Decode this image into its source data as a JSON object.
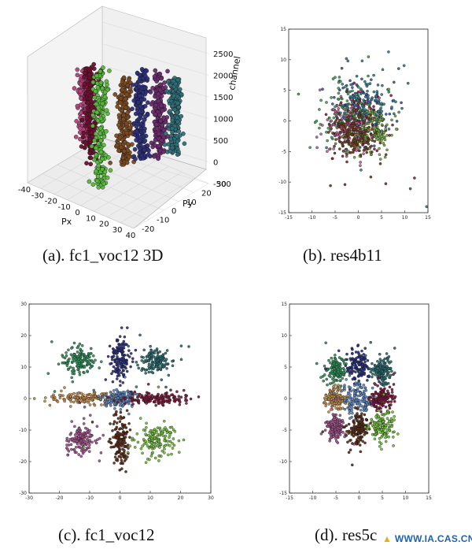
{
  "figure": {
    "captions": {
      "a": "(a). fc1_voc12 3D",
      "b": "(b). res4b11",
      "c": "(c). fc1_voc12",
      "d": "(d). res5c"
    },
    "watermark": "WWW.IA.CAS.CN"
  },
  "chart_data": [
    {
      "id": "a",
      "type": "scatter",
      "projection": "3d",
      "title": "",
      "xlabel": "Px",
      "ylabel": "Py",
      "zlabel": "channel",
      "xlim": [
        -40,
        40
      ],
      "ylim": [
        -20,
        30
      ],
      "zlim": [
        -500,
        2500
      ],
      "xticks": [
        -40,
        -30,
        -20,
        -10,
        0,
        10,
        20,
        30,
        40
      ],
      "yticks": [
        -20,
        -10,
        0,
        10,
        20,
        30
      ],
      "zticks": [
        -500,
        0,
        500,
        1000,
        1500,
        2000,
        2500
      ],
      "series": [
        {
          "name": "pink column",
          "color": "#b0447a",
          "center": {
            "x": -25,
            "y": 5
          },
          "z_range": [
            200,
            1800
          ]
        },
        {
          "name": "maroon column",
          "color": "#6e1030",
          "center": {
            "x": -15,
            "y": 0
          },
          "z_range": [
            -100,
            2100
          ]
        },
        {
          "name": "green column",
          "color": "#57b83c",
          "center": {
            "x": -2,
            "y": -5
          },
          "z_range": [
            -400,
            2300
          ]
        },
        {
          "name": "olive column",
          "color": "#7a4a22",
          "center": {
            "x": 5,
            "y": 5
          },
          "z_range": [
            0,
            2000
          ]
        },
        {
          "name": "navy column",
          "color": "#2d2f7a",
          "center": {
            "x": 12,
            "y": 10
          },
          "z_range": [
            100,
            2200
          ]
        },
        {
          "name": "purple column",
          "color": "#6b2c6e",
          "center": {
            "x": 20,
            "y": 15
          },
          "z_range": [
            200,
            2100
          ]
        },
        {
          "name": "teal column",
          "color": "#2f6f78",
          "center": {
            "x": 28,
            "y": 18
          },
          "z_range": [
            300,
            2000
          ]
        }
      ]
    },
    {
      "id": "b",
      "type": "scatter",
      "title": "",
      "xlim": [
        -15,
        15
      ],
      "ylim": [
        -15,
        15
      ],
      "xticks": [
        -15,
        -10,
        -5,
        0,
        5,
        10,
        15
      ],
      "yticks": [
        -15,
        -10,
        -5,
        0,
        5,
        10,
        15
      ],
      "series": [
        {
          "name": "blue",
          "color": "#3a57a8",
          "center": [
            0,
            2
          ],
          "spread": [
            3.0,
            2.8
          ]
        },
        {
          "name": "green",
          "color": "#3fa14d",
          "center": [
            -2,
            1
          ],
          "spread": [
            2.6,
            2.4
          ]
        },
        {
          "name": "maroon",
          "color": "#8a1f3c",
          "center": [
            1,
            -1
          ],
          "spread": [
            2.8,
            2.6
          ]
        },
        {
          "name": "teal",
          "color": "#2f7d86",
          "center": [
            2,
            2
          ],
          "spread": [
            2.8,
            2.6
          ]
        },
        {
          "name": "pink",
          "color": "#c25a8e",
          "center": [
            -2,
            -1
          ],
          "spread": [
            2.6,
            2.4
          ]
        },
        {
          "name": "olive",
          "color": "#6fa83a",
          "center": [
            3,
            -2
          ],
          "spread": [
            2.4,
            2.2
          ]
        },
        {
          "name": "brown",
          "color": "#6b3a1c",
          "center": [
            -1,
            -2
          ],
          "spread": [
            2.4,
            2.2
          ]
        }
      ]
    },
    {
      "id": "c",
      "type": "scatter",
      "title": "",
      "xlim": [
        -30,
        30
      ],
      "ylim": [
        -30,
        30
      ],
      "xticks": [
        -30,
        -20,
        -10,
        0,
        10,
        20,
        30
      ],
      "yticks": [
        -30,
        -20,
        -10,
        0,
        10,
        20,
        30
      ],
      "series": [
        {
          "name": "green top-left",
          "color": "#2f8f5a",
          "center": [
            -13,
            12
          ],
          "spread": [
            2.6,
            2.0
          ]
        },
        {
          "name": "navy top-center",
          "color": "#2b2f80",
          "center": [
            0,
            13
          ],
          "spread": [
            1.6,
            3.8
          ]
        },
        {
          "name": "teal top-right",
          "color": "#2a6b70",
          "center": [
            12,
            12
          ],
          "spread": [
            2.2,
            1.8
          ]
        },
        {
          "name": "tan mid-left",
          "color": "#c08a4a",
          "center": [
            -12,
            0
          ],
          "spread": [
            5.5,
            1.0
          ]
        },
        {
          "name": "blue mid-center",
          "color": "#5a86c0",
          "center": [
            0,
            0
          ],
          "spread": [
            2.6,
            1.2
          ]
        },
        {
          "name": "maroon mid-right",
          "color": "#7a1838",
          "center": [
            12,
            0
          ],
          "spread": [
            5.0,
            1.0
          ]
        },
        {
          "name": "purple bottom-left",
          "color": "#a0508a",
          "center": [
            -13,
            -13
          ],
          "spread": [
            2.6,
            2.2
          ]
        },
        {
          "name": "brown bottom-center",
          "color": "#5a2a14",
          "center": [
            0,
            -13
          ],
          "spread": [
            1.5,
            4.2
          ]
        },
        {
          "name": "lime bottom-right",
          "color": "#6fbf3a",
          "center": [
            12,
            -13
          ],
          "spread": [
            2.8,
            2.4
          ]
        }
      ]
    },
    {
      "id": "d",
      "type": "scatter",
      "title": "",
      "xlim": [
        -15,
        15
      ],
      "ylim": [
        -15,
        15
      ],
      "xticks": [
        -15,
        -10,
        -5,
        0,
        5,
        10,
        15
      ],
      "yticks": [
        -15,
        -10,
        -5,
        0,
        5,
        10,
        15
      ],
      "series": [
        {
          "name": "green top-left",
          "color": "#2f8f5a",
          "center": [
            -5,
            4.5
          ],
          "spread": [
            1.2,
            1.0
          ]
        },
        {
          "name": "navy top-center",
          "color": "#2b2f80",
          "center": [
            0,
            5
          ],
          "spread": [
            1.1,
            1.2
          ]
        },
        {
          "name": "teal top-right",
          "color": "#2a6b70",
          "center": [
            5,
            4.5
          ],
          "spread": [
            1.1,
            1.0
          ]
        },
        {
          "name": "tan mid-left",
          "color": "#c08a4a",
          "center": [
            -5,
            0
          ],
          "spread": [
            1.2,
            0.8
          ]
        },
        {
          "name": "blue mid-center",
          "color": "#5a86c0",
          "center": [
            0,
            0
          ],
          "spread": [
            1.6,
            1.2
          ]
        },
        {
          "name": "maroon mid-right",
          "color": "#7a1838",
          "center": [
            5,
            0
          ],
          "spread": [
            1.1,
            0.8
          ]
        },
        {
          "name": "purple bottom-left",
          "color": "#a0508a",
          "center": [
            -5,
            -4.5
          ],
          "spread": [
            1.0,
            1.0
          ]
        },
        {
          "name": "brown bottom-center",
          "color": "#5a2a14",
          "center": [
            0,
            -5
          ],
          "spread": [
            1.1,
            1.4
          ]
        },
        {
          "name": "lime bottom-right",
          "color": "#6fbf3a",
          "center": [
            5,
            -4.5
          ],
          "spread": [
            1.2,
            1.1
          ]
        }
      ]
    }
  ]
}
